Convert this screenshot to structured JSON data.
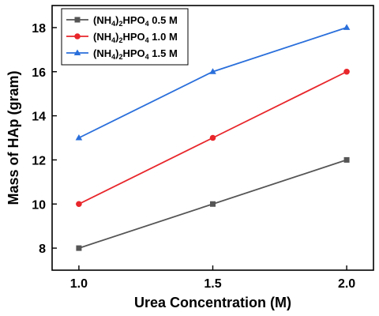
{
  "chart_data": {
    "type": "line",
    "xlabel": "Urea Concentration (M)",
    "ylabel": "Mass of HAp (gram)",
    "x": [
      1.0,
      1.5,
      2.0
    ],
    "x_ticks": [
      "1.0",
      "1.5",
      "2.0"
    ],
    "y_ticks": [
      "8",
      "10",
      "12",
      "14",
      "16",
      "18"
    ],
    "xlim": [
      0.9,
      2.1
    ],
    "ylim": [
      7.0,
      19.0
    ],
    "grid": false,
    "legend_position": "top-left",
    "series": [
      {
        "name": "(NH4)2HPO4 0.5 M",
        "name_parts": [
          "(NH",
          "4",
          ")",
          "2",
          "HPO",
          "4",
          " 0.5 M"
        ],
        "values": [
          8,
          10,
          12
        ],
        "color": "#555555",
        "marker": "square"
      },
      {
        "name": "(NH4)2HPO4 1.0 M",
        "name_parts": [
          "(NH",
          "4",
          ")",
          "2",
          "HPO",
          "4",
          " 1.0 M"
        ],
        "values": [
          10,
          13,
          16
        ],
        "color": "#e8262b",
        "marker": "circle"
      },
      {
        "name": "(NH4)2HPO4 1.5 M",
        "name_parts": [
          "(NH",
          "4",
          ")",
          "2",
          "HPO",
          "4",
          " 1.5 M"
        ],
        "values": [
          13,
          16,
          18
        ],
        "color": "#2a6fdb",
        "marker": "triangle"
      }
    ]
  }
}
